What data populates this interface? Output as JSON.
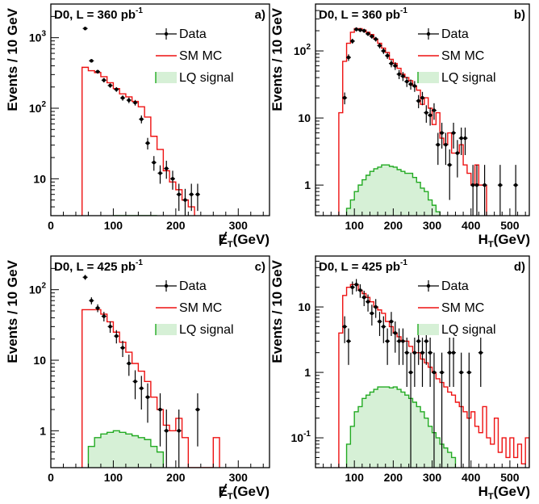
{
  "chart_data": [
    {
      "type": "histogram",
      "panel_label": "a)",
      "title": "D0, L = 360 pb",
      "title_sup": "-1",
      "xlabel_main": "E",
      "xlabel_sub": "T",
      "xlabel_unit": "(GeV)",
      "xlabel_slash": true,
      "ylabel": "Events / 10 GeV",
      "log_y": true,
      "xlim": [
        0,
        350
      ],
      "ylim": [
        3,
        3000
      ],
      "xticks": [
        0,
        100,
        200,
        300
      ],
      "yticks": [
        {
          "v": 10,
          "l": "10"
        },
        {
          "v": 100,
          "l": "10",
          "sup": "2"
        },
        {
          "v": 1000,
          "l": "10",
          "sup": "3"
        }
      ],
      "legend": [
        "Data",
        "SM MC",
        "LQ signal"
      ],
      "data": [
        {
          "x": 55,
          "y": 1350,
          "e": 60
        },
        {
          "x": 65,
          "y": 470,
          "e": 25
        },
        {
          "x": 75,
          "y": 330,
          "e": 20
        },
        {
          "x": 85,
          "y": 250,
          "e": 18
        },
        {
          "x": 95,
          "y": 210,
          "e": 15
        },
        {
          "x": 105,
          "y": 185,
          "e": 14
        },
        {
          "x": 115,
          "y": 140,
          "e": 12
        },
        {
          "x": 125,
          "y": 130,
          "e": 12
        },
        {
          "x": 135,
          "y": 120,
          "e": 11
        },
        {
          "x": 145,
          "y": 70,
          "e": 9
        },
        {
          "x": 155,
          "y": 32,
          "e": 6
        },
        {
          "x": 165,
          "y": 17,
          "e": 4
        },
        {
          "x": 175,
          "y": 12,
          "e": 3.5
        },
        {
          "x": 185,
          "y": 14,
          "e": 4
        },
        {
          "x": 195,
          "y": 10,
          "e": 3
        },
        {
          "x": 205,
          "y": 6,
          "e": 2.5
        },
        {
          "x": 215,
          "y": 5,
          "e": 2.2
        },
        {
          "x": 225,
          "y": 6,
          "e": 2.5
        },
        {
          "x": 235,
          "y": 6,
          "e": 2.5
        }
      ],
      "mc_edges": [
        50,
        60,
        70,
        80,
        90,
        100,
        110,
        120,
        130,
        140,
        150,
        160,
        170,
        180,
        190,
        200,
        210,
        220,
        230
      ],
      "mc_values": [
        380,
        340,
        320,
        280,
        230,
        190,
        160,
        145,
        125,
        105,
        75,
        40,
        26,
        13,
        9,
        7,
        5,
        4
      ],
      "sig_edges": [
        100,
        110,
        120,
        130,
        140,
        150,
        160,
        170
      ],
      "sig_values": [
        2.6,
        2.8,
        3.0,
        3.0,
        2.8,
        2.6,
        2.8
      ]
    },
    {
      "type": "histogram",
      "panel_label": "b)",
      "title": "D0, L = 360 pb",
      "title_sup": "-1",
      "xlabel_main": "H",
      "xlabel_sub": "T",
      "xlabel_unit": "(GeV)",
      "xlabel_slash": false,
      "ylabel": "Events / 10 GeV",
      "log_y": true,
      "xlim": [
        0,
        550
      ],
      "ylim": [
        0.35,
        500
      ],
      "xticks": [
        100,
        200,
        300,
        400,
        500
      ],
      "yticks": [
        {
          "v": 1,
          "l": "1"
        },
        {
          "v": 10,
          "l": "10"
        },
        {
          "v": 100,
          "l": "10",
          "sup": "2"
        }
      ],
      "legend": [
        "Data",
        "SM MC",
        "LQ signal"
      ],
      "data": [
        {
          "x": 75,
          "y": 20,
          "e": 4
        },
        {
          "x": 85,
          "y": 80,
          "e": 9
        },
        {
          "x": 95,
          "y": 140,
          "e": 12
        },
        {
          "x": 105,
          "y": 210,
          "e": 15
        },
        {
          "x": 115,
          "y": 205,
          "e": 14
        },
        {
          "x": 125,
          "y": 200,
          "e": 14
        },
        {
          "x": 135,
          "y": 180,
          "e": 13
        },
        {
          "x": 145,
          "y": 165,
          "e": 13
        },
        {
          "x": 155,
          "y": 150,
          "e": 12
        },
        {
          "x": 165,
          "y": 120,
          "e": 11
        },
        {
          "x": 175,
          "y": 100,
          "e": 10
        },
        {
          "x": 185,
          "y": 85,
          "e": 9
        },
        {
          "x": 195,
          "y": 65,
          "e": 8
        },
        {
          "x": 205,
          "y": 60,
          "e": 8
        },
        {
          "x": 215,
          "y": 45,
          "e": 7
        },
        {
          "x": 225,
          "y": 42,
          "e": 6.5
        },
        {
          "x": 235,
          "y": 35,
          "e": 6
        },
        {
          "x": 245,
          "y": 32,
          "e": 5.5
        },
        {
          "x": 255,
          "y": 30,
          "e": 5.5
        },
        {
          "x": 265,
          "y": 18,
          "e": 4
        },
        {
          "x": 275,
          "y": 20,
          "e": 4.5
        },
        {
          "x": 285,
          "y": 12,
          "e": 3.5
        },
        {
          "x": 295,
          "y": 11,
          "e": 3.3
        },
        {
          "x": 305,
          "y": 13,
          "e": 3.6
        },
        {
          "x": 315,
          "y": 4,
          "e": 2
        },
        {
          "x": 325,
          "y": 6,
          "e": 2.5
        },
        {
          "x": 335,
          "y": 4,
          "e": 2
        },
        {
          "x": 345,
          "y": 2,
          "e": 1.4
        },
        {
          "x": 355,
          "y": 6,
          "e": 2.5
        },
        {
          "x": 365,
          "y": 3,
          "e": 1.7
        },
        {
          "x": 375,
          "y": 5,
          "e": 2.2
        },
        {
          "x": 385,
          "y": 5,
          "e": 2.2
        },
        {
          "x": 405,
          "y": 1,
          "e": 1
        },
        {
          "x": 415,
          "y": 1,
          "e": 1
        },
        {
          "x": 435,
          "y": 1,
          "e": 1
        },
        {
          "x": 475,
          "y": 1,
          "e": 1
        },
        {
          "x": 515,
          "y": 1,
          "e": 1
        }
      ],
      "mc_edges": [
        60,
        70,
        80,
        90,
        100,
        110,
        120,
        130,
        140,
        150,
        160,
        170,
        180,
        190,
        200,
        210,
        220,
        230,
        240,
        250,
        260,
        270,
        280,
        290,
        300,
        310,
        320,
        330,
        340,
        350,
        360,
        370,
        380,
        390,
        400,
        410,
        420,
        430,
        440
      ],
      "mc_values": [
        12,
        70,
        130,
        190,
        215,
        215,
        205,
        190,
        175,
        150,
        130,
        110,
        95,
        75,
        65,
        55,
        45,
        40,
        36,
        30,
        26,
        16,
        20,
        14,
        8,
        12,
        5,
        4,
        6,
        3,
        3,
        4,
        2,
        1.5,
        1,
        2,
        1,
        1
      ],
      "sig_edges": [
        80,
        90,
        100,
        110,
        120,
        130,
        140,
        150,
        160,
        170,
        180,
        190,
        200,
        210,
        220,
        230,
        240,
        250,
        260,
        270,
        280,
        290,
        300,
        310,
        320
      ],
      "sig_values": [
        0.45,
        0.6,
        0.8,
        1.0,
        1.2,
        1.4,
        1.6,
        1.75,
        1.85,
        2.0,
        2.0,
        1.9,
        1.85,
        1.7,
        1.6,
        1.5,
        1.5,
        1.3,
        1.1,
        0.9,
        0.8,
        0.6,
        0.5,
        0.4
      ]
    },
    {
      "type": "histogram",
      "panel_label": "c)",
      "title": "D0, L = 425 pb",
      "title_sup": "-1",
      "xlabel_main": "E",
      "xlabel_sub": "T",
      "xlabel_unit": "(GeV)",
      "xlabel_slash": true,
      "ylabel": "Events / 10 GeV",
      "log_y": true,
      "xlim": [
        0,
        350
      ],
      "ylim": [
        0.3,
        300
      ],
      "xticks": [
        0,
        100,
        200,
        300
      ],
      "yticks": [
        {
          "v": 1,
          "l": "1"
        },
        {
          "v": 10,
          "l": "10"
        },
        {
          "v": 100,
          "l": "10",
          "sup": "2"
        }
      ],
      "legend": [
        "Data",
        "SM MC",
        "LQ signal"
      ],
      "data": [
        {
          "x": 55,
          "y": 150,
          "e": 12
        },
        {
          "x": 65,
          "y": 70,
          "e": 8
        },
        {
          "x": 75,
          "y": 55,
          "e": 7
        },
        {
          "x": 85,
          "y": 42,
          "e": 6.5
        },
        {
          "x": 95,
          "y": 30,
          "e": 5.5
        },
        {
          "x": 105,
          "y": 22,
          "e": 4.7
        },
        {
          "x": 115,
          "y": 15,
          "e": 3.9
        },
        {
          "x": 125,
          "y": 9,
          "e": 3
        },
        {
          "x": 135,
          "y": 5,
          "e": 2.2
        },
        {
          "x": 145,
          "y": 4,
          "e": 2
        },
        {
          "x": 155,
          "y": 3,
          "e": 1.7
        },
        {
          "x": 175,
          "y": 2,
          "e": 1.4
        },
        {
          "x": 185,
          "y": 1,
          "e": 1
        },
        {
          "x": 205,
          "y": 1,
          "e": 1
        },
        {
          "x": 235,
          "y": 2,
          "e": 1.4
        }
      ],
      "mc_edges": [
        50,
        60,
        70,
        80,
        90,
        100,
        110,
        120,
        130,
        140,
        150,
        160,
        170,
        180,
        190,
        200,
        210,
        220,
        230,
        240,
        250,
        260,
        270
      ],
      "mc_values": [
        52,
        52,
        52,
        45,
        35,
        25,
        18,
        13,
        9,
        7,
        5,
        3,
        2,
        1.2,
        1,
        1.5,
        0.8,
        0,
        0,
        0,
        0,
        0.8
      ],
      "sig_edges": [
        60,
        70,
        80,
        90,
        100,
        110,
        120,
        130,
        140,
        150,
        160,
        170,
        180
      ],
      "sig_values": [
        0.6,
        0.8,
        0.9,
        0.95,
        1.0,
        0.95,
        0.9,
        0.85,
        0.8,
        0.75,
        0.6,
        0.5
      ]
    },
    {
      "type": "histogram",
      "panel_label": "d)",
      "title": "D0, L = 425 pb",
      "title_sup": "-1",
      "xlabel_main": "H",
      "xlabel_sub": "T",
      "xlabel_unit": "(GeV)",
      "xlabel_slash": false,
      "ylabel": "Events / 10 GeV",
      "log_y": true,
      "xlim": [
        0,
        550
      ],
      "ylim": [
        0.035,
        60
      ],
      "xticks": [
        100,
        200,
        300,
        400,
        500
      ],
      "yticks": [
        {
          "v": 0.1,
          "l": "10",
          "sup": "-1"
        },
        {
          "v": 1,
          "l": "1"
        },
        {
          "v": 10,
          "l": "10"
        }
      ],
      "legend": [
        "Data",
        "SM MC",
        "LQ signal"
      ],
      "data": [
        {
          "x": 75,
          "y": 5,
          "e": 2.2
        },
        {
          "x": 85,
          "y": 3,
          "e": 1.7
        },
        {
          "x": 95,
          "y": 20,
          "e": 4.5
        },
        {
          "x": 105,
          "y": 22,
          "e": 4.7
        },
        {
          "x": 115,
          "y": 18,
          "e": 4.2
        },
        {
          "x": 125,
          "y": 14,
          "e": 3.7
        },
        {
          "x": 135,
          "y": 12,
          "e": 3.5
        },
        {
          "x": 145,
          "y": 8,
          "e": 2.8
        },
        {
          "x": 155,
          "y": 10,
          "e": 3.2
        },
        {
          "x": 165,
          "y": 6,
          "e": 2.4
        },
        {
          "x": 175,
          "y": 5,
          "e": 2.2
        },
        {
          "x": 185,
          "y": 3,
          "e": 1.7
        },
        {
          "x": 195,
          "y": 6,
          "e": 2.4
        },
        {
          "x": 205,
          "y": 4,
          "e": 2
        },
        {
          "x": 215,
          "y": 3,
          "e": 1.7
        },
        {
          "x": 225,
          "y": 3,
          "e": 1.7
        },
        {
          "x": 235,
          "y": 2,
          "e": 1.4
        },
        {
          "x": 245,
          "y": 1,
          "e": 1
        },
        {
          "x": 255,
          "y": 2,
          "e": 1.4
        },
        {
          "x": 265,
          "y": 3,
          "e": 1.7
        },
        {
          "x": 275,
          "y": 2,
          "e": 1.4
        },
        {
          "x": 285,
          "y": 3,
          "e": 1.7
        },
        {
          "x": 295,
          "y": 2,
          "e": 1.4
        },
        {
          "x": 305,
          "y": 1,
          "e": 1
        },
        {
          "x": 325,
          "y": 1,
          "e": 1
        },
        {
          "x": 345,
          "y": 2,
          "e": 1.4
        },
        {
          "x": 355,
          "y": 2,
          "e": 1.4
        },
        {
          "x": 375,
          "y": 1,
          "e": 1
        },
        {
          "x": 395,
          "y": 1,
          "e": 1
        },
        {
          "x": 425,
          "y": 2,
          "e": 1.4
        }
      ],
      "mc_edges": [
        60,
        70,
        80,
        90,
        100,
        110,
        120,
        130,
        140,
        150,
        160,
        170,
        180,
        190,
        200,
        210,
        220,
        230,
        240,
        250,
        260,
        270,
        280,
        290,
        300,
        310,
        320,
        330,
        340,
        350,
        360,
        370,
        380,
        390,
        400,
        410,
        420,
        430,
        440,
        450,
        460,
        470,
        480,
        490,
        500,
        510,
        520,
        530,
        540,
        550
      ],
      "mc_values": [
        4,
        15,
        20,
        22,
        22,
        18,
        16,
        14,
        12,
        10,
        9,
        8,
        6,
        5,
        4,
        3.5,
        3,
        3,
        2.5,
        2,
        2,
        1.6,
        1.4,
        1.2,
        1.0,
        0.8,
        0.7,
        0.6,
        0.5,
        0.45,
        0.35,
        0.3,
        0.25,
        0.2,
        0.25,
        0.15,
        0.12,
        0.3,
        0.1,
        0.08,
        0.2,
        0.06,
        0.1,
        0.05,
        0.1,
        0.05,
        0.08,
        0.04,
        0.1
      ],
      "sig_edges": [
        80,
        90,
        100,
        110,
        120,
        130,
        140,
        150,
        160,
        170,
        180,
        190,
        200,
        210,
        220,
        230,
        240,
        250,
        260,
        270,
        280,
        290,
        300,
        310,
        320,
        330,
        340,
        350,
        360
      ],
      "sig_values": [
        0.08,
        0.15,
        0.25,
        0.3,
        0.4,
        0.45,
        0.5,
        0.55,
        0.6,
        0.6,
        0.6,
        0.58,
        0.6,
        0.55,
        0.5,
        0.45,
        0.4,
        0.35,
        0.3,
        0.25,
        0.2,
        0.15,
        0.12,
        0.1,
        0.08,
        0.07,
        0.06,
        0.05
      ]
    }
  ]
}
